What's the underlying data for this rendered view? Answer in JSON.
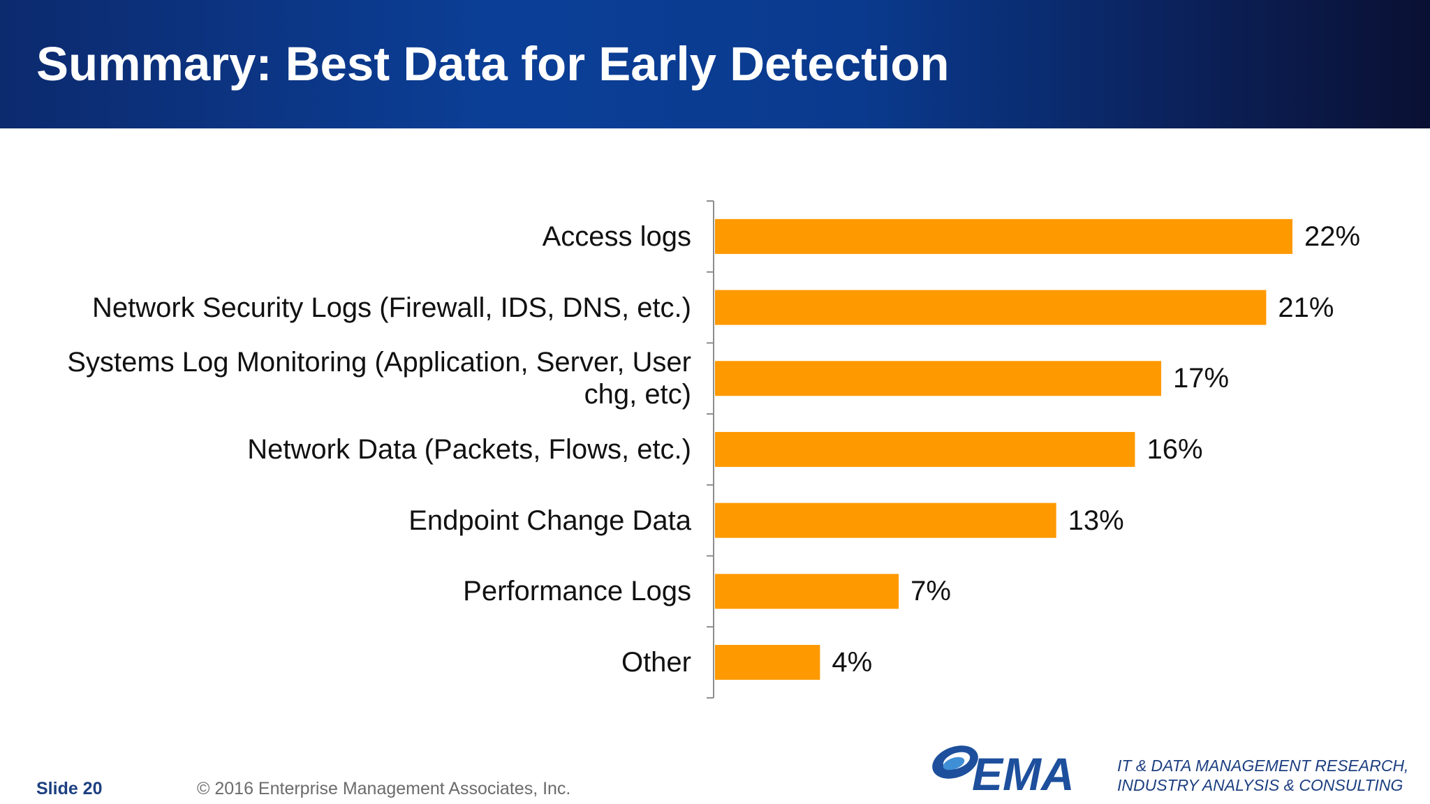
{
  "slide": {
    "title": "Summary: Best Data for Early Detection",
    "number_label": "Slide 20",
    "copyright": "© 2016 Enterprise Management Associates, Inc.",
    "brand": {
      "logo_text": "EMA",
      "tagline_line1": "IT & DATA MANAGEMENT RESEARCH,",
      "tagline_line2": "INDUSTRY ANALYSIS & CONSULTING"
    }
  },
  "colors": {
    "bar": "#FF9900",
    "header_blue": "#0b3f97",
    "footer_blue": "#1d3f80"
  },
  "chart_data": {
    "type": "bar",
    "orientation": "horizontal",
    "categories": [
      "Access logs",
      "Network Security Logs (Firewall, IDS, DNS, etc.)",
      "Systems Log Monitoring (Application, Server, User chg, etc)",
      "Network Data (Packets, Flows, etc.)",
      "Endpoint Change Data",
      "Performance Logs",
      "Other"
    ],
    "values": [
      22,
      21,
      17,
      16,
      13,
      7,
      4
    ],
    "value_labels": [
      "22%",
      "21%",
      "17%",
      "16%",
      "13%",
      "7%",
      "4%"
    ],
    "xlim": [
      0,
      22
    ],
    "grid": false,
    "legend": "none"
  }
}
